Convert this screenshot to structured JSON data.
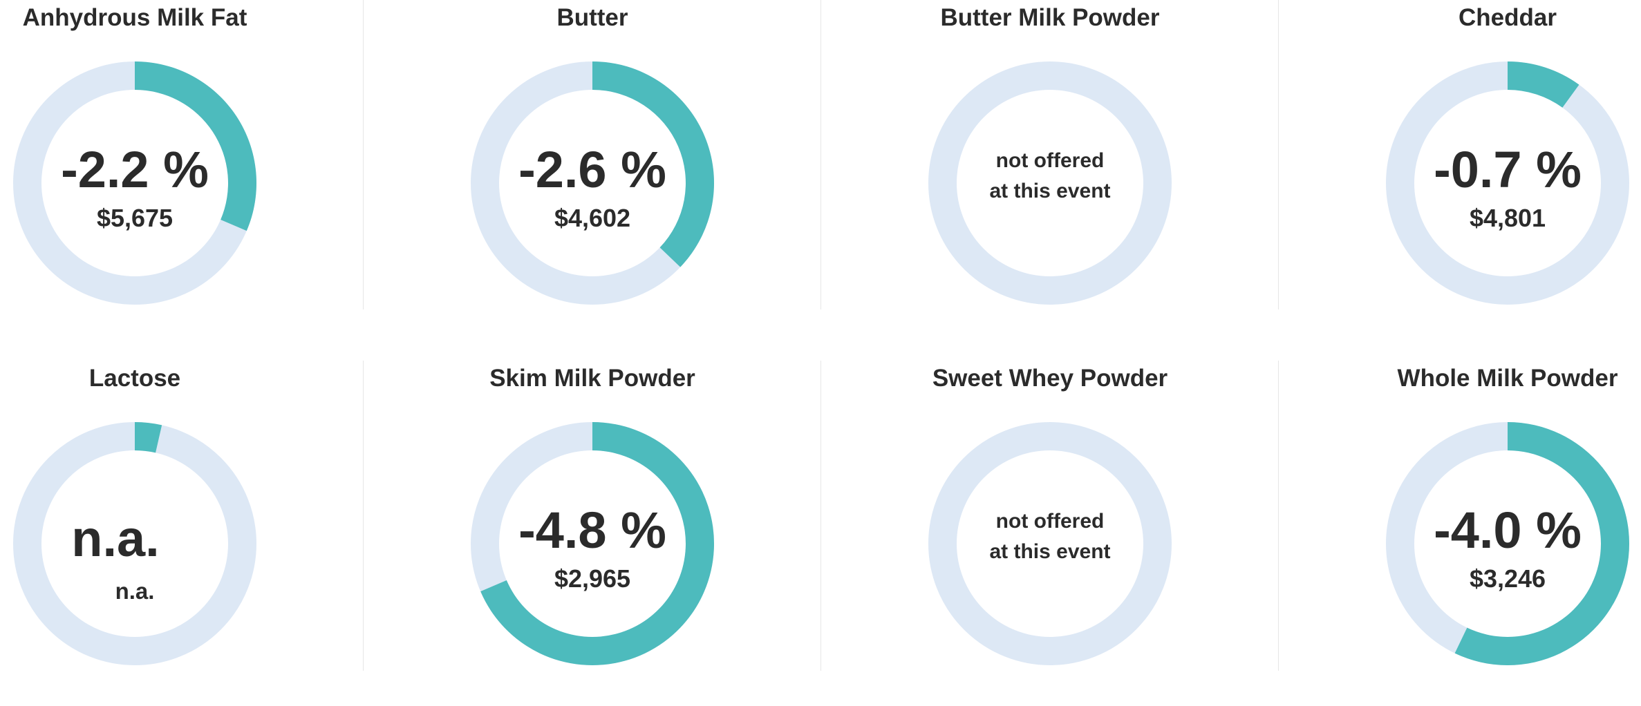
{
  "colors": {
    "ring": "#dde8f5",
    "accent": "#4dbbbd",
    "text": "#2b2b2b",
    "divider": "#e6e6e6"
  },
  "chart_data": {
    "type": "donut-grid",
    "items": [
      {
        "product": "Anhydrous Milk Fat",
        "change": "-2.2 %",
        "price": "$5,675",
        "change_value": -2.2,
        "offered": true
      },
      {
        "product": "Butter",
        "change": "-2.6 %",
        "price": "$4,602",
        "change_value": -2.6,
        "offered": true
      },
      {
        "product": "Butter Milk Powder",
        "change": "",
        "price": "",
        "change_value": null,
        "offered": false,
        "note_line1": "not offered",
        "note_line2": "at this event"
      },
      {
        "product": "Cheddar",
        "change": "-0.7 %",
        "price": "$4,801",
        "change_value": -0.7,
        "offered": true
      },
      {
        "product": "Lactose",
        "change": "n.a.",
        "price": "n.a.",
        "change_value": 0.25,
        "offered": true,
        "na": true
      },
      {
        "product": "Skim Milk Powder",
        "change": "-4.8 %",
        "price": "$2,965",
        "change_value": -4.8,
        "offered": true
      },
      {
        "product": "Sweet Whey Powder",
        "change": "",
        "price": "",
        "change_value": null,
        "offered": false,
        "note_line1": "not offered",
        "note_line2": "at this event"
      },
      {
        "product": "Whole Milk Powder",
        "change": "-4.0 %",
        "price": "$3,246",
        "change_value": -4.0,
        "offered": true
      }
    ]
  }
}
